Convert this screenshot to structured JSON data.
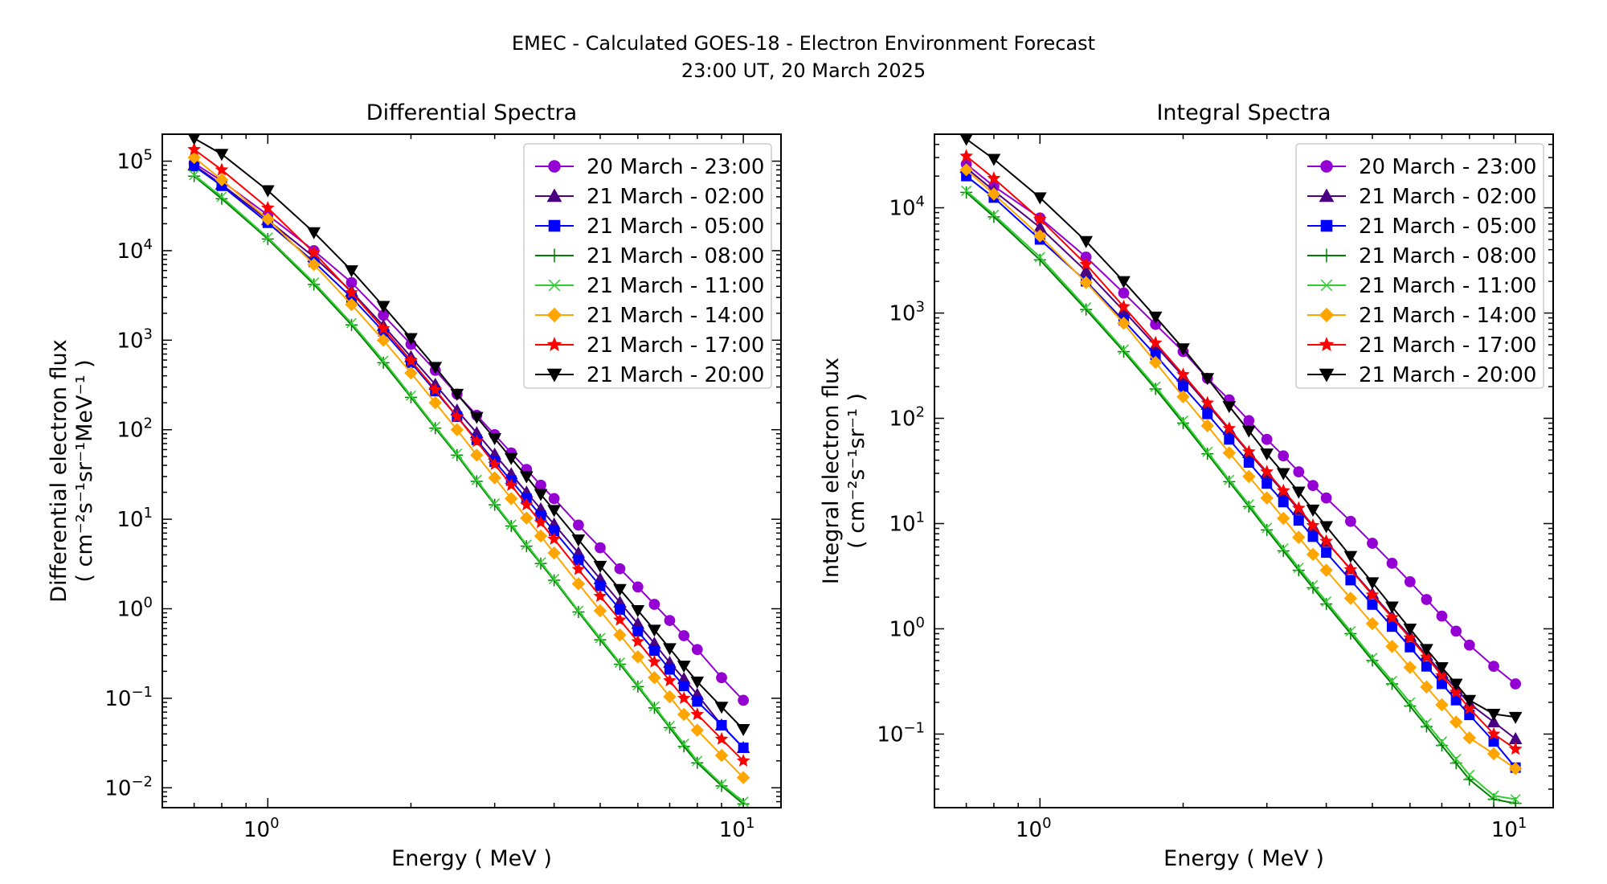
{
  "figure": {
    "suptitle_line1": "EMEC - Calculated GOES-18 - Electron Environment Forecast",
    "suptitle_line2": "23:00 UT, 20 March 2025"
  },
  "legend_series": [
    {
      "name": "20 March - 23:00",
      "color": "#9400D3",
      "marker": "circle"
    },
    {
      "name": "21 March - 02:00",
      "color": "#4B0082",
      "marker": "triangle-up"
    },
    {
      "name": "21 March - 05:00",
      "color": "#0000FF",
      "marker": "square"
    },
    {
      "name": "21 March - 08:00",
      "color": "#008000",
      "marker": "plus"
    },
    {
      "name": "21 March - 11:00",
      "color": "#32CD32",
      "marker": "x"
    },
    {
      "name": "21 March - 14:00",
      "color": "#FFA500",
      "marker": "diamond"
    },
    {
      "name": "21 March - 17:00",
      "color": "#FF0000",
      "marker": "star"
    },
    {
      "name": "21 March - 20:00",
      "color": "#000000",
      "marker": "triangle-down"
    }
  ],
  "chart_data": [
    {
      "type": "line",
      "title": "Differential Spectra",
      "xlabel": "Energy ( MeV )",
      "ylabel_line1": "Differential electron flux",
      "ylabel_line2": "( cm⁻²s⁻¹sr⁻¹MeV⁻¹ )",
      "x_scale": "log",
      "y_scale": "log",
      "xlim": [
        0.6,
        12
      ],
      "ylim": [
        0.006,
        200000
      ],
      "x_tick_labels": [
        "10⁰",
        "10¹"
      ],
      "y_tick_labels": [
        "10⁻²",
        "10⁻¹",
        "10⁰",
        "10¹",
        "10²",
        "10³",
        "10⁴",
        "10⁵"
      ],
      "legend_position": "top-right",
      "grid": false,
      "x": [
        0.7,
        0.8,
        1.0,
        1.25,
        1.5,
        1.75,
        2.0,
        2.25,
        2.5,
        2.75,
        3.0,
        3.25,
        3.5,
        3.75,
        4.0,
        4.5,
        5.0,
        5.5,
        6.0,
        6.5,
        7.0,
        7.5,
        8.0,
        9.0,
        10.0
      ],
      "series": [
        {
          "name": "20 March - 23:00",
          "values": [
            95000,
            60000,
            25000,
            10000,
            4400,
            1900,
            900,
            460,
            250,
            145,
            88,
            55,
            36,
            24,
            17,
            8.6,
            4.8,
            2.8,
            1.75,
            1.12,
            0.74,
            0.5,
            0.35,
            0.17,
            0.095
          ]
        },
        {
          "name": "21 March - 02:00",
          "values": [
            90000,
            55000,
            22000,
            8500,
            3500,
            1450,
            650,
            320,
            165,
            92,
            53,
            32,
            20,
            13,
            8.8,
            4.2,
            2.15,
            1.18,
            0.68,
            0.41,
            0.25,
            0.165,
            0.11,
            0.05,
            0.028
          ]
        },
        {
          "name": "21 March - 05:00",
          "values": [
            88000,
            53000,
            20500,
            7500,
            3000,
            1250,
            560,
            270,
            140,
            77,
            44,
            27,
            17,
            11,
            7.4,
            3.5,
            1.8,
            0.98,
            0.56,
            0.34,
            0.21,
            0.137,
            0.092,
            0.05,
            0.028
          ]
        },
        {
          "name": "21 March - 08:00",
          "values": [
            68000,
            38000,
            13500,
            4200,
            1480,
            560,
            230,
            104,
            52,
            26.5,
            14.5,
            8.4,
            5.0,
            3.2,
            2.08,
            0.92,
            0.45,
            0.24,
            0.135,
            0.078,
            0.047,
            0.029,
            0.019,
            0.0105,
            0.0066
          ]
        },
        {
          "name": "21 March - 11:00",
          "values": [
            70000,
            40000,
            14000,
            4400,
            1550,
            590,
            240,
            108,
            54,
            27.5,
            15,
            8.7,
            5.2,
            3.3,
            2.15,
            0.95,
            0.47,
            0.25,
            0.14,
            0.081,
            0.049,
            0.031,
            0.02,
            0.011,
            0.007
          ]
        },
        {
          "name": "21 March - 14:00",
          "values": [
            110000,
            62000,
            22500,
            7000,
            2500,
            1000,
            430,
            200,
            100,
            52,
            29,
            17,
            10.3,
            6.5,
            4.2,
            1.9,
            0.95,
            0.51,
            0.29,
            0.17,
            0.104,
            0.066,
            0.044,
            0.023,
            0.013
          ]
        },
        {
          "name": "21 March - 17:00",
          "values": [
            135000,
            80000,
            30000,
            9500,
            3400,
            1350,
            590,
            280,
            140,
            74,
            41,
            24,
            14.5,
            9.2,
            6.0,
            2.75,
            1.38,
            0.75,
            0.43,
            0.255,
            0.157,
            0.1,
            0.066,
            0.035,
            0.02
          ]
        },
        {
          "name": "21 March - 20:00",
          "values": [
            180000,
            120000,
            47000,
            16000,
            6000,
            2400,
            1050,
            500,
            250,
            138,
            80,
            48,
            30,
            19,
            12.6,
            5.9,
            3.0,
            1.65,
            0.96,
            0.58,
            0.36,
            0.23,
            0.153,
            0.08,
            0.045
          ]
        }
      ]
    },
    {
      "type": "line",
      "title": "Integral Spectra",
      "xlabel": "Energy ( MeV )",
      "ylabel_line1": "Integral electron flux",
      "ylabel_line2": "( cm⁻²s⁻¹sr⁻¹ )",
      "x_scale": "log",
      "y_scale": "log",
      "xlim": [
        0.6,
        12
      ],
      "ylim": [
        0.02,
        50000
      ],
      "x_tick_labels": [
        "10⁰",
        "10¹"
      ],
      "y_tick_labels": [
        "10⁻¹",
        "10⁰",
        "10¹",
        "10²",
        "10³",
        "10⁴"
      ],
      "legend_position": "top-right",
      "grid": false,
      "x": [
        0.7,
        0.8,
        1.0,
        1.25,
        1.5,
        1.75,
        2.0,
        2.25,
        2.5,
        2.75,
        3.0,
        3.25,
        3.5,
        3.75,
        4.0,
        4.5,
        5.0,
        5.5,
        6.0,
        6.5,
        7.0,
        7.5,
        8.0,
        9.0,
        10.0
      ],
      "series": [
        {
          "name": "20 March - 23:00",
          "values": [
            26000,
            16000,
            8000,
            3400,
            1550,
            780,
            430,
            240,
            150,
            95,
            63,
            44,
            31,
            23,
            17.5,
            10.5,
            6.5,
            4.2,
            2.8,
            1.9,
            1.32,
            0.95,
            0.7,
            0.44,
            0.3
          ]
        },
        {
          "name": "21 March - 02:00",
          "values": [
            24000,
            14500,
            6500,
            2500,
            1050,
            490,
            250,
            135,
            78,
            47,
            30,
            20,
            13.5,
            9.4,
            6.7,
            3.7,
            2.15,
            1.32,
            0.85,
            0.56,
            0.38,
            0.27,
            0.195,
            0.13,
            0.09
          ]
        },
        {
          "name": "21 March - 05:00",
          "values": [
            20000,
            12500,
            5000,
            2000,
            850,
            400,
            200,
            110,
            63,
            38,
            24,
            16,
            10.7,
            7.5,
            5.3,
            2.9,
            1.7,
            1.05,
            0.67,
            0.44,
            0.3,
            0.21,
            0.152,
            0.085,
            0.048
          ]
        },
        {
          "name": "21 March - 08:00",
          "values": [
            14000,
            8200,
            3200,
            1080,
            430,
            190,
            90,
            46,
            25,
            14.5,
            8.7,
            5.5,
            3.6,
            2.45,
            1.72,
            0.9,
            0.5,
            0.3,
            0.185,
            0.118,
            0.078,
            0.053,
            0.037,
            0.024,
            0.022
          ]
        },
        {
          "name": "21 March - 11:00",
          "values": [
            14500,
            8600,
            3400,
            1130,
            450,
            200,
            95,
            48,
            26,
            15.2,
            9.1,
            5.8,
            3.8,
            2.6,
            1.82,
            0.95,
            0.53,
            0.32,
            0.2,
            0.127,
            0.085,
            0.058,
            0.041,
            0.026,
            0.024
          ]
        },
        {
          "name": "21 March - 14:00",
          "values": [
            23000,
            13500,
            5400,
            1950,
            800,
            340,
            160,
            85,
            47,
            28,
            17.5,
            11.2,
            7.4,
            5.1,
            3.6,
            1.95,
            1.12,
            0.68,
            0.43,
            0.28,
            0.19,
            0.13,
            0.092,
            0.065,
            0.047
          ]
        },
        {
          "name": "21 March - 17:00",
          "values": [
            31000,
            19000,
            7800,
            2900,
            1150,
            520,
            260,
            140,
            80,
            48,
            31,
            20.5,
            14,
            9.6,
            6.8,
            3.65,
            2.1,
            1.28,
            0.82,
            0.54,
            0.36,
            0.25,
            0.175,
            0.1,
            0.072
          ]
        },
        {
          "name": "21 March - 20:00",
          "values": [
            45000,
            29000,
            12500,
            4800,
            2000,
            920,
            460,
            240,
            130,
            76,
            46,
            30,
            20,
            13.5,
            9.4,
            4.9,
            2.75,
            1.62,
            1.0,
            0.64,
            0.43,
            0.3,
            0.21,
            0.155,
            0.145
          ]
        }
      ]
    }
  ]
}
